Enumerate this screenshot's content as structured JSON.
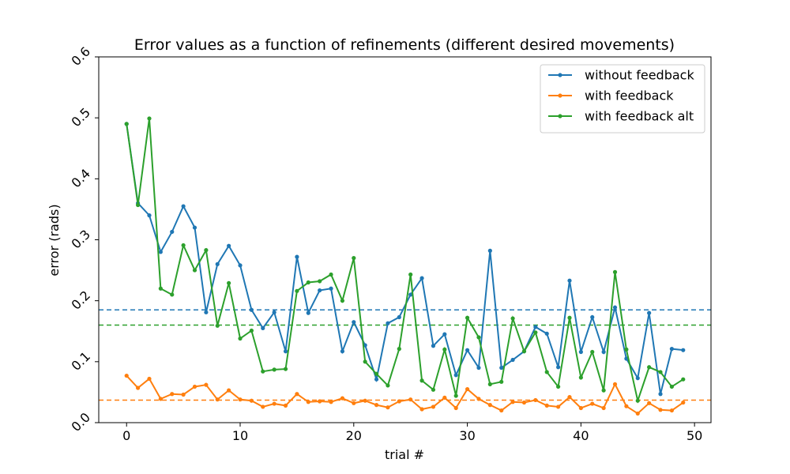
{
  "chart_data": {
    "type": "line",
    "title": "Error values as a function of refinements (different desired movements)",
    "xlabel": "trial #",
    "ylabel": "error (rads)",
    "xlim": [
      -2.45,
      51.45
    ],
    "ylim": [
      0.0,
      0.6
    ],
    "xticks": [
      0,
      10,
      20,
      30,
      40,
      50
    ],
    "yticks": [
      0.0,
      0.1,
      0.2,
      0.3,
      0.4,
      0.5,
      0.6
    ],
    "grid": false,
    "legend_position": "top-right",
    "x": [
      0,
      1,
      2,
      3,
      4,
      5,
      6,
      7,
      8,
      9,
      10,
      11,
      12,
      13,
      14,
      15,
      16,
      17,
      18,
      19,
      20,
      21,
      22,
      23,
      24,
      25,
      26,
      27,
      28,
      29,
      30,
      31,
      32,
      33,
      34,
      35,
      36,
      37,
      38,
      39,
      40,
      41,
      42,
      43,
      44,
      45,
      46,
      47,
      48,
      49
    ],
    "series": [
      {
        "name": "without feedback",
        "color": "#1f77b4",
        "values": [
          0.49,
          0.36,
          0.34,
          0.28,
          0.313,
          0.355,
          0.32,
          0.181,
          0.26,
          0.29,
          0.258,
          0.185,
          0.155,
          0.181,
          0.117,
          0.272,
          0.18,
          0.217,
          0.22,
          0.117,
          0.165,
          0.127,
          0.071,
          0.163,
          0.173,
          0.21,
          0.237,
          0.126,
          0.145,
          0.078,
          0.119,
          0.09,
          0.282,
          0.09,
          0.103,
          0.117,
          0.157,
          0.146,
          0.091,
          0.233,
          0.116,
          0.173,
          0.116,
          0.189,
          0.105,
          0.073,
          0.18,
          0.047,
          0.121,
          0.119
        ],
        "mean": 0.185
      },
      {
        "name": "with feedback",
        "color": "#ff7f0e",
        "values": [
          0.077,
          0.057,
          0.072,
          0.039,
          0.047,
          0.046,
          0.059,
          0.062,
          0.038,
          0.053,
          0.038,
          0.036,
          0.026,
          0.031,
          0.028,
          0.047,
          0.034,
          0.035,
          0.034,
          0.04,
          0.032,
          0.036,
          0.029,
          0.025,
          0.035,
          0.038,
          0.022,
          0.026,
          0.041,
          0.024,
          0.055,
          0.039,
          0.029,
          0.02,
          0.034,
          0.033,
          0.037,
          0.028,
          0.026,
          0.042,
          0.024,
          0.031,
          0.024,
          0.063,
          0.027,
          0.015,
          0.032,
          0.021,
          0.02,
          0.033
        ],
        "mean": 0.037
      },
      {
        "name": "with feedback alt",
        "color": "#2ca02c",
        "values": [
          0.49,
          0.357,
          0.499,
          0.22,
          0.21,
          0.291,
          0.25,
          0.283,
          0.159,
          0.229,
          0.138,
          0.151,
          0.084,
          0.087,
          0.088,
          0.216,
          0.23,
          0.232,
          0.243,
          0.2,
          0.27,
          0.1,
          0.08,
          0.061,
          0.121,
          0.243,
          0.069,
          0.054,
          0.12,
          0.044,
          0.172,
          0.14,
          0.063,
          0.067,
          0.171,
          0.117,
          0.148,
          0.083,
          0.059,
          0.172,
          0.074,
          0.116,
          0.053,
          0.247,
          0.12,
          0.036,
          0.091,
          0.083,
          0.059,
          0.071
        ],
        "mean": 0.16
      }
    ]
  }
}
